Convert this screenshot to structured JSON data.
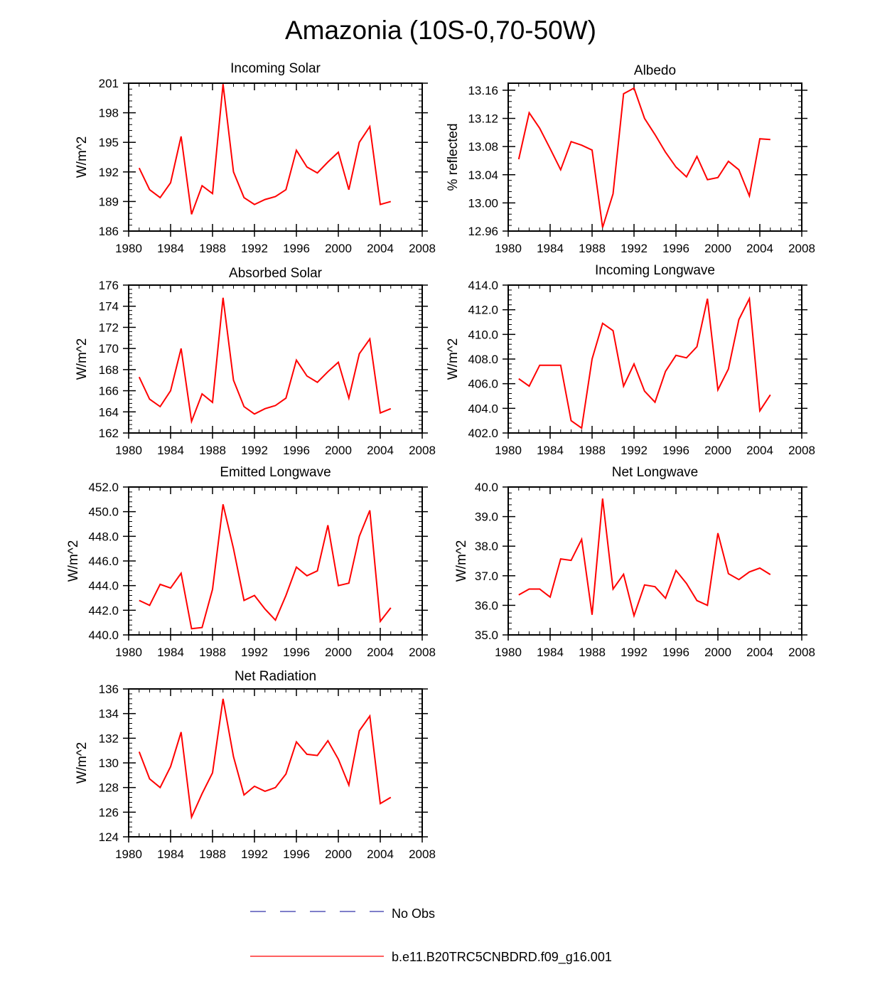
{
  "figure": {
    "title": "Amazonia (10S-0,70-50W)"
  },
  "legend": {
    "entries": [
      {
        "label": "No Obs",
        "color": "#3333aa",
        "style": "dashed"
      },
      {
        "label": "b.e11.B20TRC5CNBDRD.f09_g16.001",
        "color": "#ff0000",
        "style": "solid"
      }
    ]
  },
  "chart_data": [
    {
      "type": "line",
      "title": "Incoming Solar",
      "ylabel": "W/m^2",
      "xlabel": "",
      "xlim": [
        1980,
        2008
      ],
      "ylim": [
        186,
        201
      ],
      "xticks": [
        "1980",
        "1984",
        "1988",
        "1992",
        "1996",
        "2000",
        "2004",
        "2008"
      ],
      "yticks": [
        "186",
        "189",
        "192",
        "195",
        "198",
        "201"
      ],
      "series": [
        {
          "name": "b.e11.B20TRC5CNBDRD.f09_g16.001",
          "color": "#ff0000",
          "x": [
            1981,
            1982,
            1983,
            1984,
            1985,
            1986,
            1987,
            1988,
            1989,
            1990,
            1991,
            1992,
            1993,
            1994,
            1995,
            1996,
            1997,
            1998,
            1999,
            2000,
            2001,
            2002,
            2003,
            2004,
            2005
          ],
          "values": [
            192.4,
            190.2,
            189.4,
            190.9,
            195.6,
            187.7,
            190.6,
            189.8,
            200.9,
            192.0,
            189.4,
            188.7,
            189.2,
            189.5,
            190.2,
            194.2,
            192.5,
            191.9,
            193.0,
            194.0,
            190.2,
            195.0,
            196.6,
            188.7,
            189.0
          ]
        }
      ]
    },
    {
      "type": "line",
      "title": "Albedo",
      "ylabel": "% reflected",
      "xlabel": "",
      "xlim": [
        1980,
        2008
      ],
      "ylim": [
        12.96,
        13.17
      ],
      "xticks": [
        "1980",
        "1984",
        "1988",
        "1992",
        "1996",
        "2000",
        "2004",
        "2008"
      ],
      "yticks": [
        "12.96",
        "13.00",
        "13.04",
        "13.08",
        "13.12",
        "13.16"
      ],
      "series": [
        {
          "name": "b.e11.B20TRC5CNBDRD.f09_g16.001",
          "color": "#ff0000",
          "x": [
            1981,
            1982,
            1983,
            1984,
            1985,
            1986,
            1987,
            1988,
            1989,
            1990,
            1991,
            1992,
            1993,
            1994,
            1995,
            1996,
            1997,
            1998,
            1999,
            2000,
            2001,
            2002,
            2003,
            2004,
            2005
          ],
          "values": [
            13.062,
            13.128,
            13.106,
            13.077,
            13.047,
            13.087,
            13.082,
            13.075,
            12.965,
            13.013,
            13.155,
            13.163,
            13.12,
            13.097,
            13.072,
            13.051,
            13.037,
            13.066,
            13.033,
            13.036,
            13.059,
            13.047,
            13.01,
            13.091,
            13.09
          ]
        }
      ]
    },
    {
      "type": "line",
      "title": "Absorbed Solar",
      "ylabel": "W/m^2",
      "xlabel": "",
      "xlim": [
        1980,
        2008
      ],
      "ylim": [
        162,
        176
      ],
      "xticks": [
        "1980",
        "1984",
        "1988",
        "1992",
        "1996",
        "2000",
        "2004",
        "2008"
      ],
      "yticks": [
        "162",
        "164",
        "166",
        "168",
        "170",
        "172",
        "174",
        "176"
      ],
      "series": [
        {
          "name": "b.e11.B20TRC5CNBDRD.f09_g16.001",
          "color": "#ff0000",
          "x": [
            1981,
            1982,
            1983,
            1984,
            1985,
            1986,
            1987,
            1988,
            1989,
            1990,
            1991,
            1992,
            1993,
            1994,
            1995,
            1996,
            1997,
            1998,
            1999,
            2000,
            2001,
            2002,
            2003,
            2004,
            2005
          ],
          "values": [
            167.3,
            165.2,
            164.5,
            166.0,
            170.0,
            163.1,
            165.7,
            164.9,
            174.8,
            167.0,
            164.5,
            163.8,
            164.3,
            164.6,
            165.3,
            168.9,
            167.4,
            166.8,
            167.8,
            168.7,
            165.3,
            169.5,
            170.9,
            163.9,
            164.3
          ]
        }
      ]
    },
    {
      "type": "line",
      "title": "Incoming Longwave",
      "ylabel": "W/m^2",
      "xlabel": "",
      "xlim": [
        1980,
        2008
      ],
      "ylim": [
        402.0,
        414.0
      ],
      "xticks": [
        "1980",
        "1984",
        "1988",
        "1992",
        "1996",
        "2000",
        "2004",
        "2008"
      ],
      "yticks": [
        "402.0",
        "404.0",
        "406.0",
        "408.0",
        "410.0",
        "412.0",
        "414.0"
      ],
      "series": [
        {
          "name": "b.e11.B20TRC5CNBDRD.f09_g16.001",
          "color": "#ff0000",
          "x": [
            1981,
            1982,
            1983,
            1984,
            1985,
            1986,
            1987,
            1988,
            1989,
            1990,
            1991,
            1992,
            1993,
            1994,
            1995,
            1996,
            1997,
            1998,
            1999,
            2000,
            2001,
            2002,
            2003,
            2004,
            2005
          ],
          "values": [
            406.4,
            405.8,
            407.5,
            407.5,
            407.5,
            403.0,
            402.4,
            408.0,
            410.9,
            410.3,
            405.8,
            407.6,
            405.4,
            404.5,
            407.0,
            408.3,
            408.1,
            409.0,
            412.9,
            405.5,
            407.2,
            411.2,
            412.9,
            403.8,
            405.1
          ]
        }
      ]
    },
    {
      "type": "line",
      "title": "Emitted Longwave",
      "ylabel": "W/m^2",
      "xlabel": "",
      "xlim": [
        1980,
        2008
      ],
      "ylim": [
        440.0,
        452.0
      ],
      "xticks": [
        "1980",
        "1984",
        "1988",
        "1992",
        "1996",
        "2000",
        "2004",
        "2008"
      ],
      "yticks": [
        "440.0",
        "442.0",
        "444.0",
        "446.0",
        "448.0",
        "450.0",
        "452.0"
      ],
      "series": [
        {
          "name": "b.e11.B20TRC5CNBDRD.f09_g16.001",
          "color": "#ff0000",
          "x": [
            1981,
            1982,
            1983,
            1984,
            1985,
            1986,
            1987,
            1988,
            1989,
            1990,
            1991,
            1992,
            1993,
            1994,
            1995,
            1996,
            1997,
            1998,
            1999,
            2000,
            2001,
            2002,
            2003,
            2004,
            2005
          ],
          "values": [
            442.8,
            442.4,
            444.1,
            443.8,
            445.0,
            440.5,
            440.6,
            443.7,
            450.6,
            447.0,
            442.8,
            443.2,
            442.1,
            441.2,
            443.2,
            445.5,
            444.8,
            445.2,
            448.9,
            444.0,
            444.2,
            448.0,
            450.1,
            441.1,
            442.2
          ]
        }
      ]
    },
    {
      "type": "line",
      "title": "Net Longwave",
      "ylabel": "W/m^2",
      "xlabel": "",
      "xlim": [
        1980,
        2008
      ],
      "ylim": [
        35.0,
        40.0
      ],
      "xticks": [
        "1980",
        "1984",
        "1988",
        "1992",
        "1996",
        "2000",
        "2004",
        "2008"
      ],
      "yticks": [
        "35.0",
        "36.0",
        "37.0",
        "38.0",
        "39.0",
        "40.0"
      ],
      "series": [
        {
          "name": "b.e11.B20TRC5CNBDRD.f09_g16.001",
          "color": "#ff0000",
          "x": [
            1981,
            1982,
            1983,
            1984,
            1985,
            1986,
            1987,
            1988,
            1989,
            1990,
            1991,
            1992,
            1993,
            1994,
            1995,
            1996,
            1997,
            1998,
            1999,
            2000,
            2001,
            2002,
            2003,
            2004,
            2005
          ],
          "values": [
            36.35,
            36.55,
            36.55,
            36.28,
            37.57,
            37.52,
            38.23,
            35.68,
            39.61,
            36.55,
            37.05,
            35.65,
            36.69,
            36.63,
            36.24,
            37.18,
            36.74,
            36.16,
            36.0,
            38.44,
            37.07,
            36.87,
            37.13,
            37.26,
            37.04
          ]
        }
      ]
    },
    {
      "type": "line",
      "title": "Net Radiation",
      "ylabel": "W/m^2",
      "xlabel": "",
      "xlim": [
        1980,
        2008
      ],
      "ylim": [
        124,
        136
      ],
      "xticks": [
        "1980",
        "1984",
        "1988",
        "1992",
        "1996",
        "2000",
        "2004",
        "2008"
      ],
      "yticks": [
        "124",
        "126",
        "128",
        "130",
        "132",
        "134",
        "136"
      ],
      "series": [
        {
          "name": "b.e11.B20TRC5CNBDRD.f09_g16.001",
          "color": "#ff0000",
          "x": [
            1981,
            1982,
            1983,
            1984,
            1985,
            1986,
            1987,
            1988,
            1989,
            1990,
            1991,
            1992,
            1993,
            1994,
            1995,
            1996,
            1997,
            1998,
            1999,
            2000,
            2001,
            2002,
            2003,
            2004,
            2005
          ],
          "values": [
            130.9,
            128.7,
            128.0,
            129.7,
            132.5,
            125.6,
            127.5,
            129.2,
            135.2,
            130.5,
            127.4,
            128.1,
            127.7,
            128.0,
            129.1,
            131.7,
            130.7,
            130.6,
            131.8,
            130.3,
            128.2,
            132.6,
            133.8,
            126.7,
            127.2
          ]
        }
      ]
    }
  ]
}
